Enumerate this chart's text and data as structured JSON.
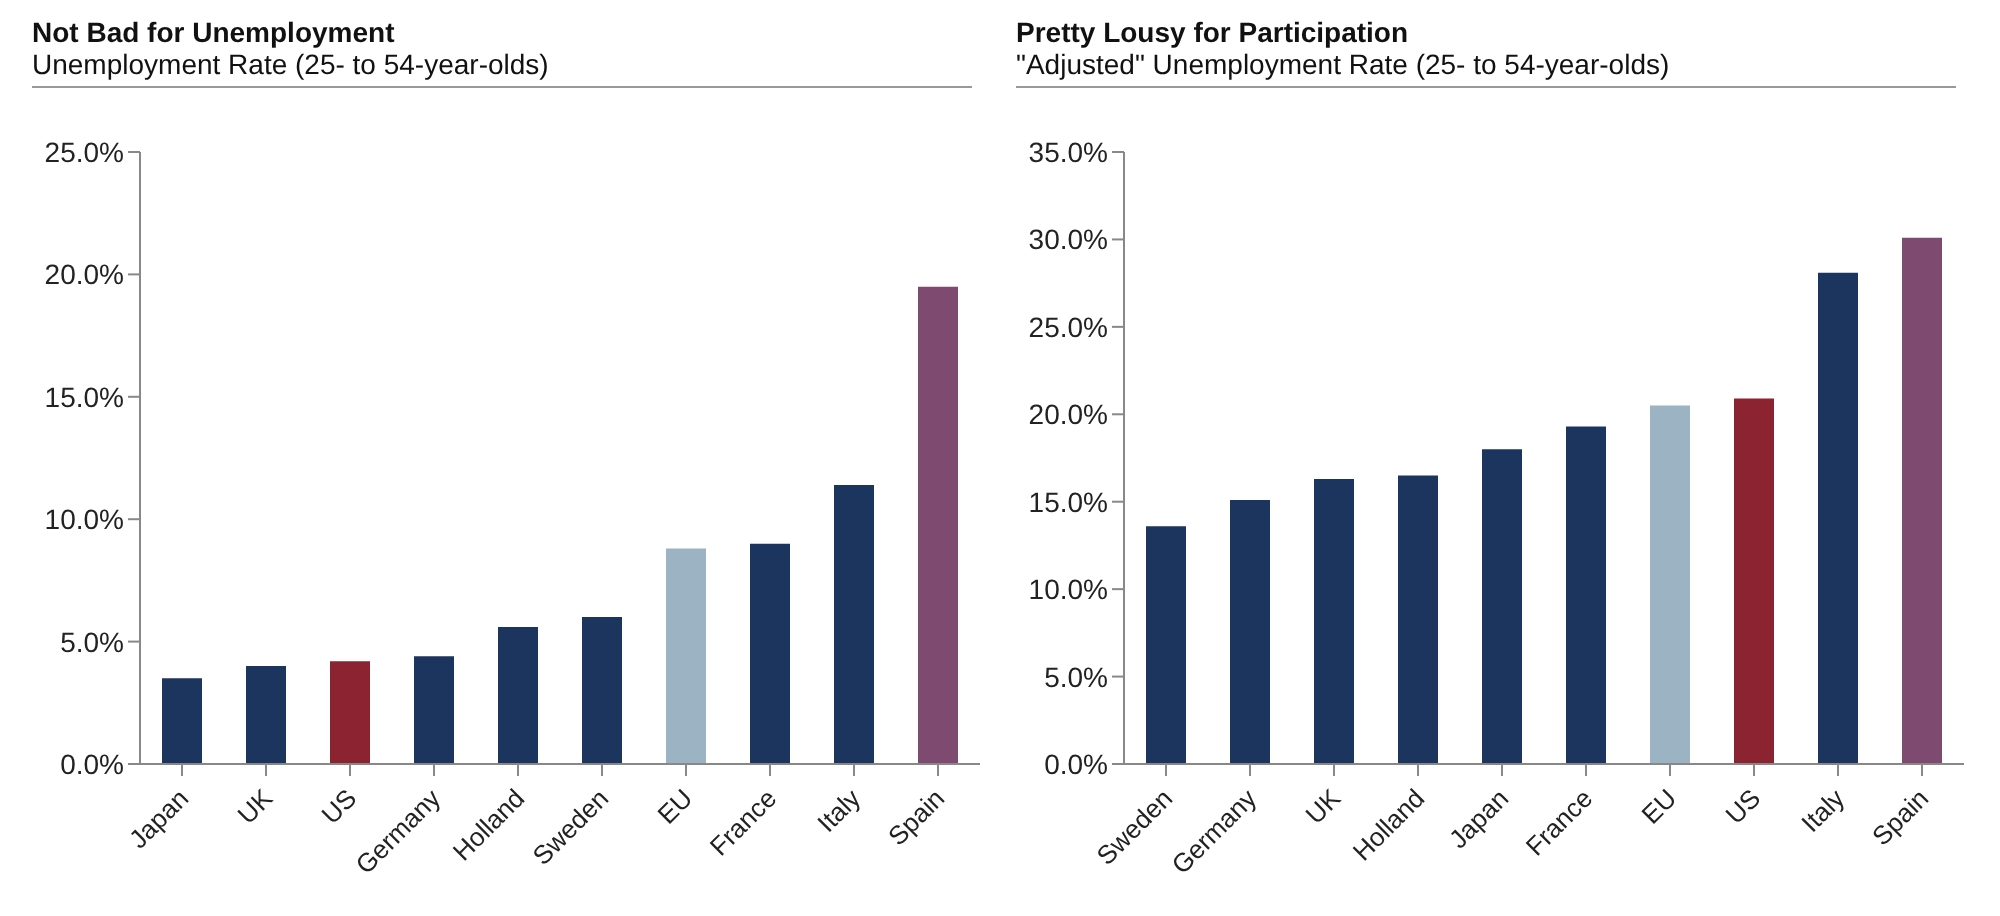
{
  "chart_data": [
    {
      "type": "bar",
      "title": "Not Bad for Unemployment",
      "subtitle": "Unemployment Rate (25- to 54-year-olds)",
      "categories": [
        "Japan",
        "UK",
        "US",
        "Germany",
        "Holland",
        "Sweden",
        "EU",
        "France",
        "Italy",
        "Spain"
      ],
      "values": [
        3.5,
        4.0,
        4.2,
        4.4,
        5.6,
        6.0,
        8.8,
        9.0,
        11.4,
        19.5
      ],
      "colors": [
        "#1c355e",
        "#1c355e",
        "#8b2331",
        "#1c355e",
        "#1c355e",
        "#1c355e",
        "#9cb3c3",
        "#1c355e",
        "#1c355e",
        "#7f4a6f"
      ],
      "ylim": [
        0,
        25
      ],
      "yticks": [
        {
          "value": 0,
          "label": "0.0%"
        },
        {
          "value": 5,
          "label": "5.0%"
        },
        {
          "value": 10,
          "label": "10.0%"
        },
        {
          "value": 15,
          "label": "15.0%"
        },
        {
          "value": 20,
          "label": "20.0%"
        },
        {
          "value": 25,
          "label": "25.0%"
        }
      ],
      "grid": false,
      "legend": false
    },
    {
      "type": "bar",
      "title": "Pretty Lousy for Participation",
      "subtitle": "\"Adjusted\" Unemployment Rate (25- to 54-year-olds)",
      "categories": [
        "Sweden",
        "Germany",
        "UK",
        "Holland",
        "Japan",
        "France",
        "EU",
        "US",
        "Italy",
        "Spain"
      ],
      "values": [
        13.6,
        15.1,
        16.3,
        16.5,
        18.0,
        19.3,
        20.5,
        20.9,
        28.1,
        30.1
      ],
      "colors": [
        "#1c355e",
        "#1c355e",
        "#1c355e",
        "#1c355e",
        "#1c355e",
        "#1c355e",
        "#9cb3c3",
        "#8b2331",
        "#1c355e",
        "#7f4a6f"
      ],
      "ylim": [
        0,
        35
      ],
      "yticks": [
        {
          "value": 0,
          "label": "0.0%"
        },
        {
          "value": 5,
          "label": "5.0%"
        },
        {
          "value": 10,
          "label": "10.0%"
        },
        {
          "value": 15,
          "label": "15.0%"
        },
        {
          "value": 20,
          "label": "20.0%"
        },
        {
          "value": 25,
          "label": "25.0%"
        },
        {
          "value": 30,
          "label": "30.0%"
        },
        {
          "value": 35,
          "label": "35.0%"
        }
      ],
      "grid": false,
      "legend": false
    }
  ]
}
